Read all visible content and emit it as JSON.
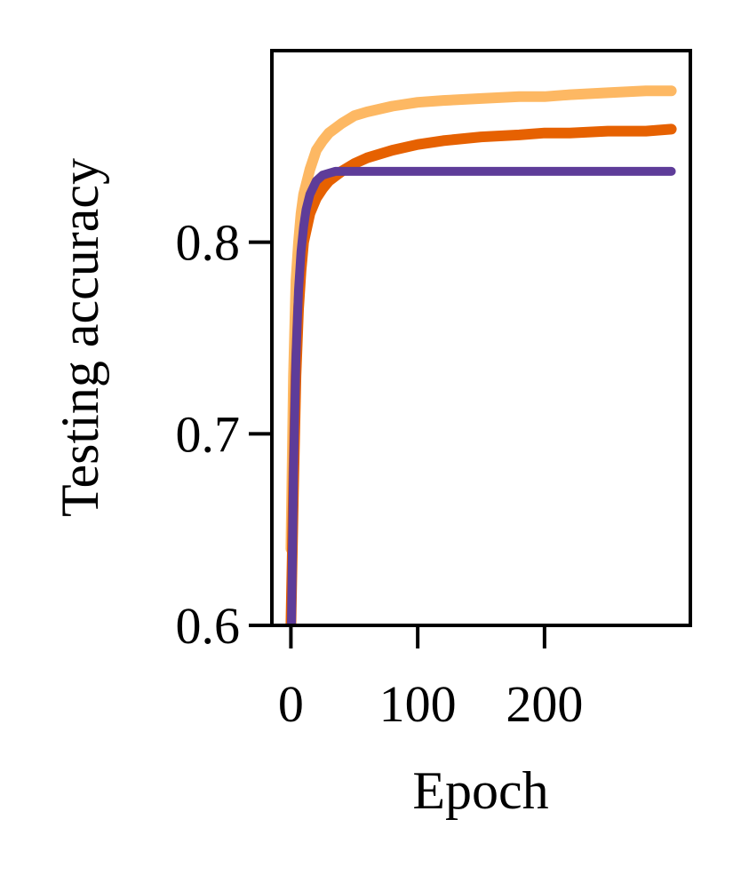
{
  "chart_data": {
    "type": "line",
    "title": "",
    "xlabel": "Epoch",
    "ylabel": "Testing accuracy",
    "xlim": [
      -15,
      315
    ],
    "ylim": [
      0.6,
      0.9
    ],
    "xticks": [
      0,
      100,
      200
    ],
    "xtick_labels": [
      "0",
      "100",
      "200"
    ],
    "yticks": [
      0.6,
      0.7,
      0.8
    ],
    "ytick_labels": [
      "0.6",
      "0.7",
      "0.8"
    ],
    "grid": false,
    "legend": "none",
    "series": [
      {
        "color": "#FDB863",
        "x": [
          0,
          2,
          4,
          6,
          8,
          10,
          15,
          20,
          25,
          30,
          40,
          50,
          60,
          80,
          100,
          120,
          150,
          180,
          200,
          220,
          250,
          280,
          300
        ],
        "y": [
          0.64,
          0.73,
          0.78,
          0.8,
          0.815,
          0.825,
          0.838,
          0.848,
          0.853,
          0.857,
          0.862,
          0.866,
          0.868,
          0.871,
          0.873,
          0.874,
          0.875,
          0.876,
          0.876,
          0.877,
          0.878,
          0.879,
          0.879
        ]
      },
      {
        "color": "#E66101",
        "x": [
          0,
          2,
          4,
          6,
          8,
          10,
          15,
          20,
          25,
          30,
          40,
          50,
          60,
          80,
          100,
          120,
          150,
          180,
          200,
          220,
          250,
          280,
          300
        ],
        "y": [
          0.6,
          0.67,
          0.73,
          0.765,
          0.785,
          0.8,
          0.815,
          0.823,
          0.828,
          0.832,
          0.837,
          0.841,
          0.844,
          0.848,
          0.851,
          0.853,
          0.855,
          0.856,
          0.857,
          0.857,
          0.858,
          0.858,
          0.859
        ]
      },
      {
        "color": "#5E3C99",
        "x": [
          0,
          2,
          4,
          6,
          8,
          10,
          12,
          15,
          20,
          25,
          30,
          35,
          40,
          60,
          100,
          150,
          200,
          250,
          300
        ],
        "y": [
          0.58,
          0.68,
          0.74,
          0.775,
          0.795,
          0.808,
          0.817,
          0.825,
          0.832,
          0.835,
          0.836,
          0.837,
          0.837,
          0.837,
          0.837,
          0.837,
          0.837,
          0.837,
          0.837
        ]
      }
    ]
  }
}
